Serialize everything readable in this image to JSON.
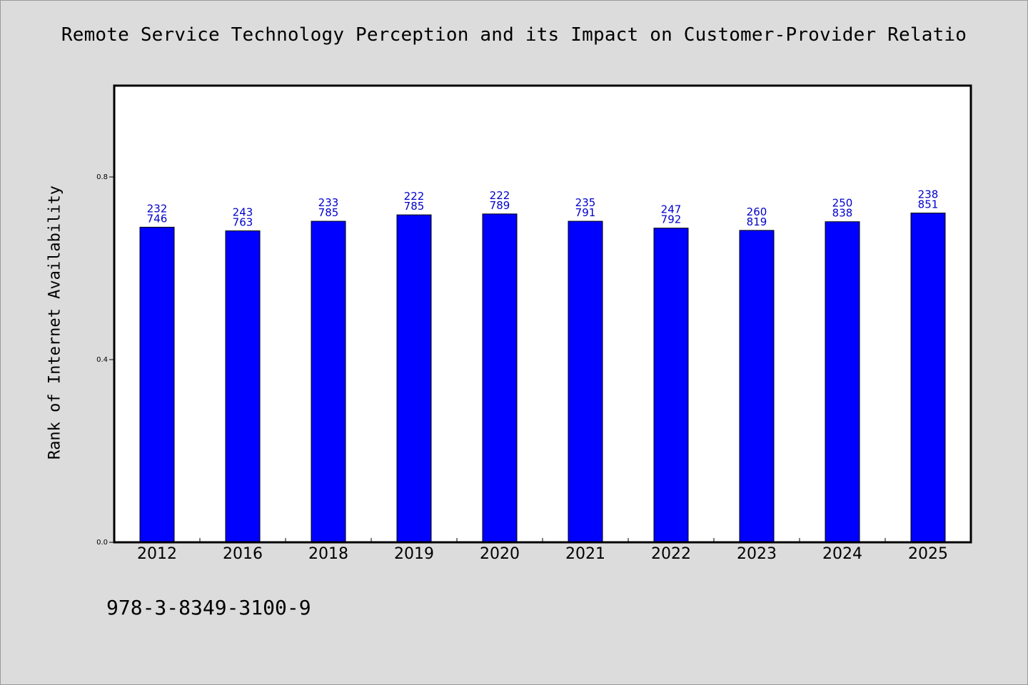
{
  "chart_data": {
    "type": "bar",
    "title": "Remote Service Technology Perception and its Impact on Customer-Provider Relatio",
    "xlabel": "",
    "ylabel": "Rank of Internet Availability",
    "ylim": [
      0.0,
      1.0
    ],
    "yticks": [
      "0.0",
      "0.4",
      "0.8"
    ],
    "grid": false,
    "categories": [
      "2012",
      "2016",
      "2018",
      "2019",
      "2020",
      "2021",
      "2022",
      "2023",
      "2024",
      "2025"
    ],
    "values": [
      0.69,
      0.682,
      0.703,
      0.717,
      0.719,
      0.703,
      0.688,
      0.683,
      0.702,
      0.721
    ],
    "data_labels": [
      [
        "232",
        "746"
      ],
      [
        "243",
        "763"
      ],
      [
        "233",
        "785"
      ],
      [
        "222",
        "785"
      ],
      [
        "222",
        "789"
      ],
      [
        "235",
        "791"
      ],
      [
        "247",
        "792"
      ],
      [
        "260",
        "819"
      ],
      [
        "250",
        "838"
      ],
      [
        "238",
        "851"
      ]
    ],
    "colors": {
      "bar": "#0000ff",
      "label": "#0000cc",
      "plot_bg": "#ffffff",
      "page_bg": "#dcdcdc"
    }
  },
  "footer": {
    "text": "978-3-8349-3100-9"
  }
}
